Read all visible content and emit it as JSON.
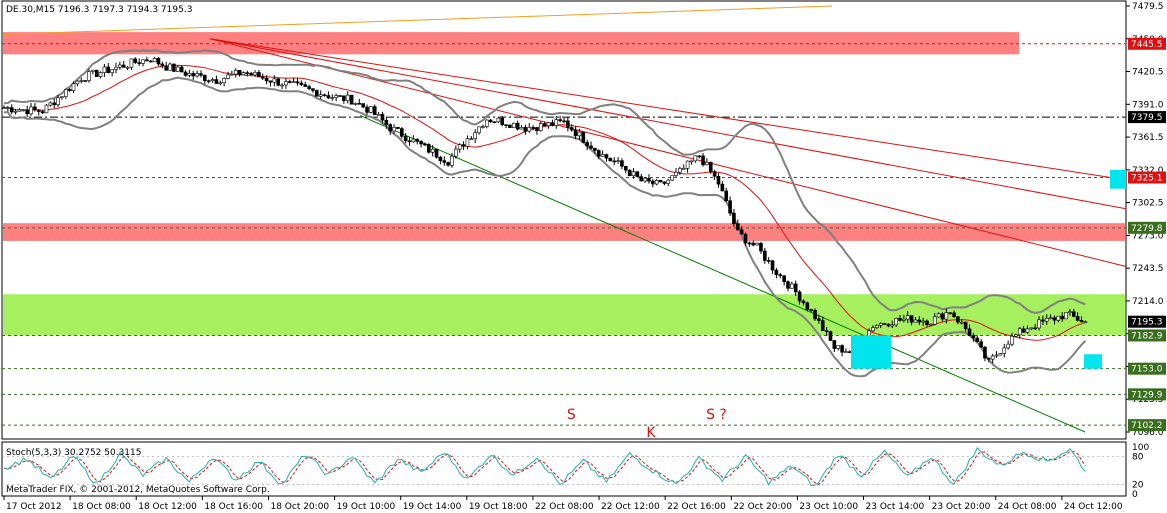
{
  "chart_data": {
    "type": "candlestick",
    "symbol_header": "DE.30,M15  7196.3 7197.3 7194.3 7195.3",
    "copyright": "MetaTrader FIX, © 2001-2012, MetaQuotes Software Corp.",
    "oscillator_label": "Stoch(5,3,3) 30.2752 50.3115",
    "price_axis": {
      "ylim": [
        7096.0,
        7479.5
      ],
      "ticks": [
        "7479.5",
        "7450.0",
        "7420.5",
        "7391.0",
        "7361.5",
        "7332.0",
        "7302.5",
        "7273.0",
        "7243.5",
        "7214.0",
        "7184.5",
        "7155.0",
        "7125.5",
        "7096.0"
      ]
    },
    "stoch_axis": {
      "ylim": [
        0,
        100
      ],
      "ticks": [
        "100",
        "80",
        "20",
        "0"
      ]
    },
    "time_axis_labels": [
      "17 Oct 2012",
      "18 Oct 08:00",
      "18 Oct 12:00",
      "18 Oct 16:00",
      "18 Oct 20:00",
      "19 Oct 10:00",
      "19 Oct 14:00",
      "19 Oct 18:00",
      "22 Oct 08:00",
      "22 Oct 12:00",
      "22 Oct 16:00",
      "22 Oct 20:00",
      "23 Oct 10:00",
      "23 Oct 14:00",
      "23 Oct 20:00",
      "24 Oct 08:00",
      "24 Oct 12:00"
    ],
    "price_badges": [
      {
        "label": "7445.5",
        "price": 7445.5,
        "color": "#e01010",
        "text_color": "#ffffff"
      },
      {
        "label": "7379.5",
        "price": 7379.5,
        "color": "#000000",
        "text_color": "#ffffff"
      },
      {
        "label": "7325.1",
        "price": 7325.1,
        "color": "#e01010",
        "text_color": "#ffffff"
      },
      {
        "label": "7279.8",
        "price": 7279.8,
        "color": "#3a6e1f",
        "text_color": "#ffffff"
      },
      {
        "label": "7195.3",
        "price": 7195.3,
        "color": "#000000",
        "text_color": "#ffffff"
      },
      {
        "label": "7182.9",
        "price": 7182.9,
        "color": "#3a6e1f",
        "text_color": "#ffffff"
      },
      {
        "label": "7153.0",
        "price": 7153.0,
        "color": "#3a6e1f",
        "text_color": "#ffffff"
      },
      {
        "label": "7129.9",
        "price": 7129.9,
        "color": "#3a6e1f",
        "text_color": "#ffffff"
      },
      {
        "label": "7102.2",
        "price": 7102.2,
        "color": "#3a6e1f",
        "text_color": "#ffffff"
      }
    ],
    "zones": [
      {
        "low": 7436,
        "high": 7456,
        "color": "#ff8080"
      },
      {
        "low": 7268,
        "high": 7284,
        "color": "#ff8080"
      },
      {
        "low": 7183,
        "high": 7220,
        "color": "#a6f060"
      }
    ],
    "annotations": [
      {
        "text": "S",
        "bar": 143,
        "price": 7113,
        "color": "#e01010"
      },
      {
        "text": "K",
        "bar": 163,
        "price": 7097,
        "color": "#e01010"
      },
      {
        "text": "S ?",
        "bar": 178,
        "price": 7113,
        "color": "#e01010"
      }
    ],
    "colors": {
      "bull": "#ffffff",
      "bear": "#000000",
      "candle_outline": "#000000",
      "bollinger": "#808080",
      "ma": "#e01010",
      "trendline_red": "#e01010",
      "trendline_green": "#008000",
      "trendline_orange": "#f0a020",
      "cyan": "#00e5ee",
      "stoch_main": "#20b2aa",
      "stoch_signal": "#e01010"
    },
    "ohlc_note": "Approximate path of M15 bars read from the chart",
    "close_path": [
      [
        0,
        7388
      ],
      [
        5,
        7386
      ],
      [
        10,
        7385
      ],
      [
        15,
        7400
      ],
      [
        20,
        7415
      ],
      [
        25,
        7420
      ],
      [
        30,
        7425
      ],
      [
        35,
        7430
      ],
      [
        38,
        7432
      ],
      [
        42,
        7425
      ],
      [
        48,
        7418
      ],
      [
        55,
        7413
      ],
      [
        62,
        7420
      ],
      [
        70,
        7412
      ],
      [
        78,
        7405
      ],
      [
        85,
        7398
      ],
      [
        90,
        7395
      ],
      [
        95,
        7385
      ],
      [
        100,
        7370
      ],
      [
        105,
        7360
      ],
      [
        110,
        7350
      ],
      [
        115,
        7340
      ],
      [
        120,
        7360
      ],
      [
        125,
        7378
      ],
      [
        130,
        7375
      ],
      [
        135,
        7370
      ],
      [
        140,
        7372
      ],
      [
        145,
        7375
      ],
      [
        150,
        7360
      ],
      [
        155,
        7345
      ],
      [
        160,
        7335
      ],
      [
        165,
        7322
      ],
      [
        170,
        7318
      ],
      [
        175,
        7330
      ],
      [
        180,
        7345
      ],
      [
        185,
        7320
      ],
      [
        190,
        7275
      ],
      [
        195,
        7262
      ],
      [
        200,
        7240
      ],
      [
        205,
        7222
      ],
      [
        210,
        7200
      ],
      [
        215,
        7172
      ],
      [
        220,
        7168
      ],
      [
        225,
        7192
      ],
      [
        230,
        7196
      ],
      [
        235,
        7198
      ],
      [
        240,
        7196
      ],
      [
        245,
        7205
      ],
      [
        250,
        7185
      ],
      [
        255,
        7158
      ],
      [
        260,
        7178
      ],
      [
        265,
        7190
      ],
      [
        270,
        7196
      ],
      [
        275,
        7202
      ],
      [
        280,
        7195
      ]
    ],
    "stoch_path": [
      [
        0,
        55
      ],
      [
        6,
        75
      ],
      [
        12,
        30
      ],
      [
        18,
        80
      ],
      [
        24,
        20
      ],
      [
        30,
        85
      ],
      [
        36,
        40
      ],
      [
        42,
        75
      ],
      [
        48,
        25
      ],
      [
        54,
        80
      ],
      [
        60,
        30
      ],
      [
        66,
        70
      ],
      [
        72,
        20
      ],
      [
        78,
        85
      ],
      [
        84,
        40
      ],
      [
        90,
        80
      ],
      [
        96,
        22
      ],
      [
        102,
        75
      ],
      [
        108,
        45
      ],
      [
        114,
        90
      ],
      [
        120,
        30
      ],
      [
        126,
        85
      ],
      [
        132,
        40
      ],
      [
        138,
        80
      ],
      [
        144,
        20
      ],
      [
        150,
        70
      ],
      [
        156,
        25
      ],
      [
        162,
        85
      ],
      [
        168,
        50
      ],
      [
        174,
        20
      ],
      [
        180,
        75
      ],
      [
        186,
        30
      ],
      [
        192,
        80
      ],
      [
        198,
        25
      ],
      [
        204,
        60
      ],
      [
        210,
        15
      ],
      [
        216,
        85
      ],
      [
        222,
        40
      ],
      [
        228,
        90
      ],
      [
        234,
        35
      ],
      [
        240,
        80
      ],
      [
        246,
        20
      ],
      [
        252,
        95
      ],
      [
        258,
        60
      ],
      [
        264,
        90
      ],
      [
        270,
        70
      ],
      [
        276,
        95
      ],
      [
        280,
        50
      ]
    ]
  }
}
